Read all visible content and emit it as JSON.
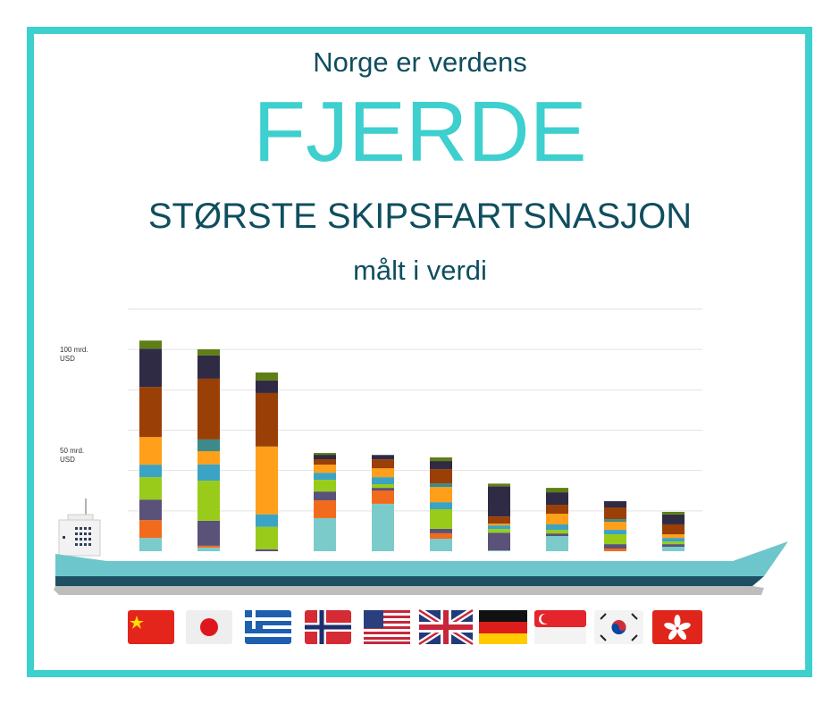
{
  "header": {
    "line1": "Norge er verdens",
    "headline": "FJERDE",
    "line2": "STØRSTE SKIPSFARTSNASJON",
    "line3": "målt i verdi"
  },
  "chart_data": {
    "type": "stacked_bar",
    "categories": [
      null,
      null,
      null,
      null,
      null,
      null,
      null,
      null,
      null,
      null
    ],
    "ylim": [
      0,
      120
    ],
    "yticks": [
      {
        "value": 50,
        "label": "50 mrd.\nUSD"
      },
      {
        "value": 100,
        "label": "100 mrd.\nUSD"
      }
    ],
    "gridlines": [
      20,
      40,
      60,
      80,
      100,
      120
    ],
    "grid": true,
    "series": [
      {
        "color": "#7ccbcb",
        "values": [
          6.6,
          1.8,
          0,
          16.4,
          23.5,
          6.2,
          0.4,
          7.5,
          0,
          2.2
        ]
      },
      {
        "color": "#f26b1d",
        "values": [
          8.8,
          0.9,
          0,
          8.8,
          6.6,
          2.7,
          0,
          0,
          1.3,
          0
        ]
      },
      {
        "color": "#5a5278",
        "values": [
          10.2,
          12.4,
          1,
          4.4,
          1.3,
          2.2,
          8.8,
          1.3,
          2.2,
          1.3
        ]
      },
      {
        "color": "#99cc1a",
        "values": [
          11.1,
          19.9,
          11.1,
          5.8,
          1.8,
          9.7,
          1.8,
          1.8,
          4.9,
          1.3
        ]
      },
      {
        "color": "#3ba3c4",
        "values": [
          6.2,
          8,
          6.2,
          3.5,
          3.5,
          3.5,
          1.8,
          2.7,
          2.2,
          1.8
        ]
      },
      {
        "color": "#ff9f1a",
        "values": [
          13.7,
          6.6,
          33.6,
          4,
          4.4,
          7.5,
          0.9,
          5.3,
          4,
          1.8
        ]
      },
      {
        "color": "#3d8a8a",
        "values": [
          0,
          5.8,
          0,
          0,
          0,
          1.8,
          0,
          0,
          1.3,
          0
        ]
      },
      {
        "color": "#9a3f05",
        "values": [
          24.8,
          30.1,
          26.5,
          2.7,
          4.4,
          7.1,
          3.5,
          4.4,
          5.8,
          4.9
        ]
      },
      {
        "color": "#2f2b45",
        "values": [
          19,
          11.5,
          6.2,
          2.2,
          2.2,
          4,
          15,
          6.2,
          3.1,
          4.9
        ]
      },
      {
        "color": "#5f7e15",
        "values": [
          4,
          3.1,
          4,
          0.9,
          0,
          1.8,
          1.3,
          2.2,
          0,
          1.3
        ]
      }
    ]
  }
}
